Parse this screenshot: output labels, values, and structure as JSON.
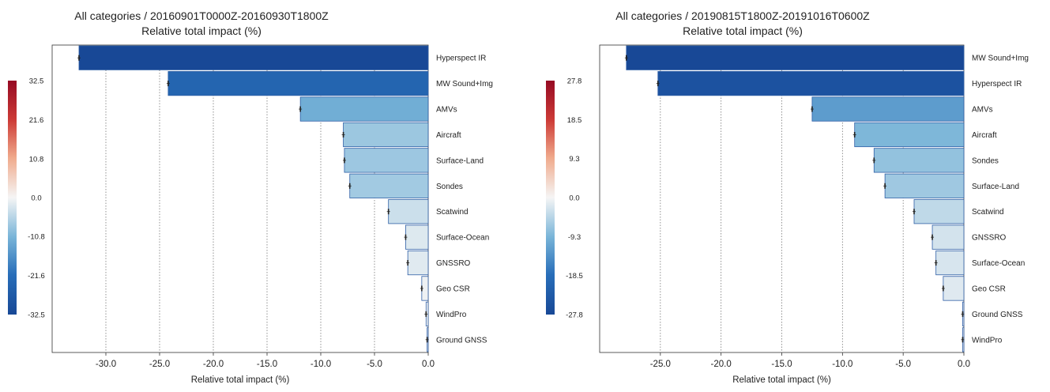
{
  "chart_data": [
    {
      "type": "bar",
      "orientation": "horizontal",
      "title": "All categories / 20160901T0000Z-20160930T1800Z",
      "subtitle": "Relative total impact (%)",
      "xlabel": "Relative total impact (%)",
      "xlim": [
        -35.0,
        0.0
      ],
      "xticks": [
        -30.0,
        -25.0,
        -20.0,
        -15.0,
        -10.0,
        -5.0,
        0.0
      ],
      "xtick_labels": [
        "-30.0",
        "-25.0",
        "-20.0",
        "-15.0",
        "-10.0",
        "-5.0",
        "0.0"
      ],
      "grid": "vertical dotted",
      "categories": [
        "Hyperspect IR",
        "MW Sound+Img",
        "AMVs",
        "Aircraft",
        "Surface-Land",
        "Sondes",
        "Scatwind",
        "Surface-Ocean",
        "GNSSRO",
        "Geo CSR",
        "WindPro",
        "Ground GNSS"
      ],
      "values": [
        -32.5,
        -24.2,
        -11.9,
        -7.9,
        -7.8,
        -7.3,
        -3.7,
        -2.1,
        -1.9,
        -0.6,
        -0.2,
        -0.1
      ],
      "colorbar": {
        "range": [
          -32.5,
          32.5
        ],
        "ticks": [
          32.5,
          21.6,
          10.8,
          0.0,
          -10.8,
          -21.6,
          -32.5
        ],
        "tick_labels": [
          "32.5",
          "21.6",
          "10.8",
          "0.0",
          "-10.8",
          "-21.6",
          "-32.5"
        ]
      }
    },
    {
      "type": "bar",
      "orientation": "horizontal",
      "title": "All categories / 20190815T1800Z-20191016T0600Z",
      "subtitle": "Relative total impact (%)",
      "xlabel": "Relative total impact (%)",
      "xlim": [
        -30.0,
        0.0
      ],
      "xticks": [
        -25.0,
        -20.0,
        -15.0,
        -10.0,
        -5.0,
        0.0
      ],
      "xtick_labels": [
        "-25.0",
        "-20.0",
        "-15.0",
        "-10.0",
        "-5.0",
        "0.0"
      ],
      "grid": "vertical dotted",
      "categories": [
        "MW Sound+Img",
        "Hyperspect IR",
        "AMVs",
        "Aircraft",
        "Sondes",
        "Surface-Land",
        "Scatwind",
        "GNSSRO",
        "Surface-Ocean",
        "Geo CSR",
        "Ground GNSS",
        "WindPro"
      ],
      "values": [
        -27.8,
        -25.2,
        -12.5,
        -9.0,
        -7.4,
        -6.5,
        -4.1,
        -2.6,
        -2.3,
        -1.7,
        -0.1,
        -0.1
      ],
      "colorbar": {
        "range": [
          -27.8,
          27.8
        ],
        "ticks": [
          27.8,
          18.5,
          9.3,
          0.0,
          -9.3,
          -18.5,
          -27.8
        ],
        "tick_labels": [
          "27.8",
          "18.5",
          "9.3",
          "0.0",
          "-9.3",
          "-18.5",
          "-27.8"
        ]
      }
    }
  ]
}
